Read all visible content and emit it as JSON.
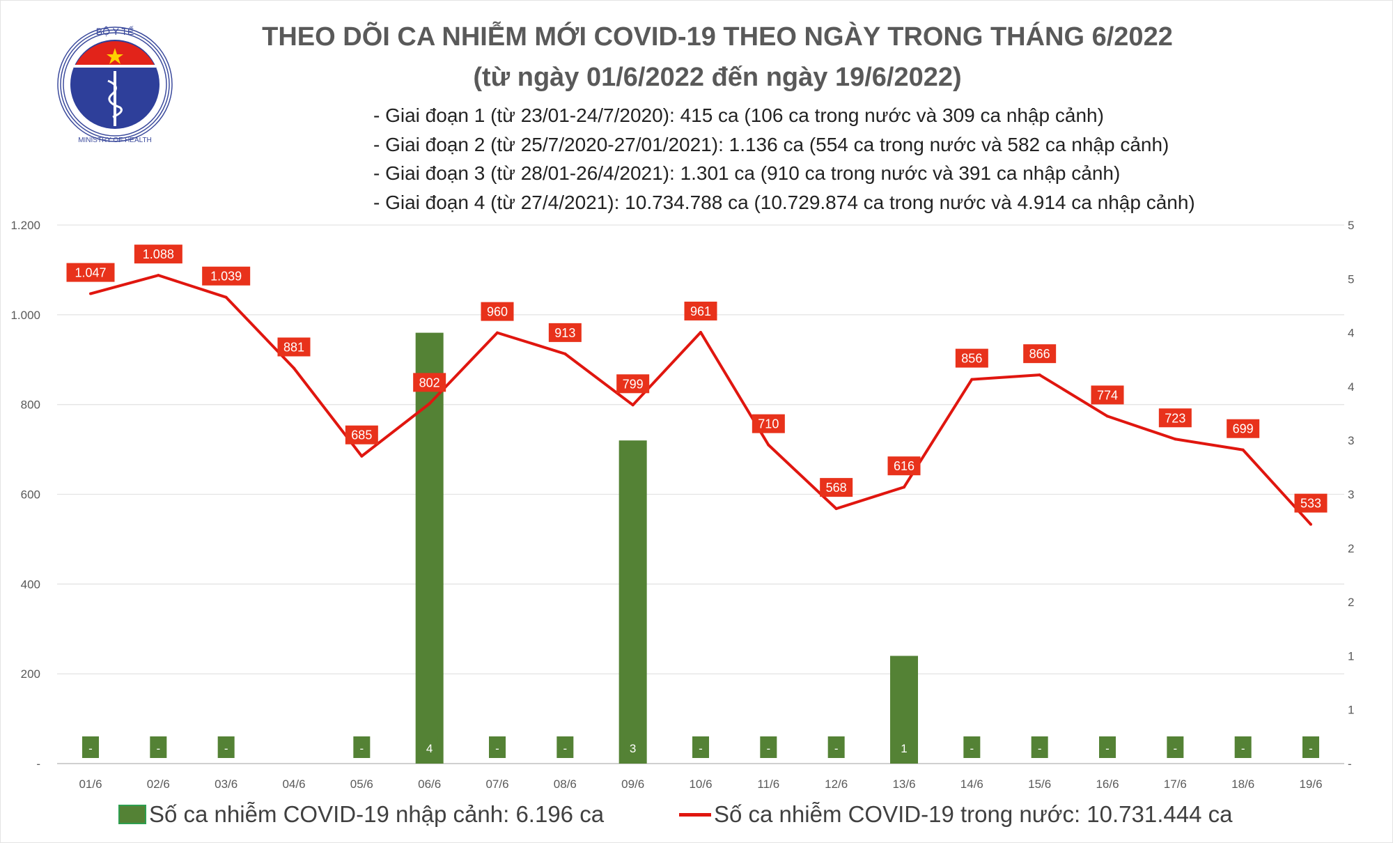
{
  "logo": {
    "top_text": "BỘ Y TẾ",
    "bottom_text": "MINISTRY OF HEALTH"
  },
  "chart_data": {
    "type": "bar+line",
    "title": "THEO DÕI CA NHIỄM MỚI COVID-19 THEO NGÀY TRONG THÁNG 6/2022",
    "subtitle": "(từ ngày 01/6/2022 đến ngày 19/6/2022)",
    "notes": [
      "- Giai đoạn 1 (từ 23/01-24/7/2020): 415 ca (106 ca trong nước và 309 ca nhập cảnh)",
      "- Giai đoạn 2 (từ 25/7/2020-27/01/2021): 1.136 ca (554 ca trong nước và 582 ca nhập cảnh)",
      "- Giai đoạn 3 (từ 28/01-26/4/2021): 1.301 ca (910 ca trong nước và 391 ca nhập cảnh)",
      "- Giai đoạn 4 (từ 27/4/2021): 10.734.788 ca (10.729.874 ca trong nước và 4.914 ca nhập cảnh)"
    ],
    "categories": [
      "01/6",
      "02/6",
      "03/6",
      "04/6",
      "05/6",
      "06/6",
      "07/6",
      "08/6",
      "09/6",
      "10/6",
      "11/6",
      "12/6",
      "13/6",
      "14/6",
      "15/6",
      "16/6",
      "17/6",
      "18/6",
      "19/6"
    ],
    "series": [
      {
        "name": "Số ca nhiễm COVID-19 nhập cảnh: 6.196 ca",
        "type": "bar",
        "axis": "right",
        "color": "#548235",
        "values": [
          0,
          0,
          0,
          null,
          0,
          4,
          0,
          0,
          3,
          0,
          0,
          0,
          1,
          0,
          0,
          0,
          0,
          0,
          0
        ],
        "labels": [
          "-",
          "-",
          "-",
          "",
          "-",
          "4",
          "-",
          "-",
          "3",
          "-",
          "-",
          "-",
          "1",
          "-",
          "-",
          "-",
          "-",
          "-",
          "-"
        ]
      },
      {
        "name": "Số ca nhiễm COVID-19 trong nước: 10.731.444 ca",
        "type": "line",
        "axis": "left",
        "color": "#e0160f",
        "values": [
          1047,
          1088,
          1039,
          881,
          685,
          802,
          960,
          913,
          799,
          961,
          710,
          568,
          616,
          856,
          866,
          774,
          723,
          699,
          533
        ],
        "labels": [
          "1.047",
          "1.088",
          "1.039",
          "881",
          "685",
          "802",
          "960",
          "913",
          "799",
          "961",
          "710",
          "568",
          "616",
          "856",
          "866",
          "774",
          "723",
          "699",
          "533"
        ]
      }
    ],
    "left_axis": {
      "range": [
        0,
        1200
      ],
      "ticks": [
        "-",
        "200",
        "400",
        "600",
        "800",
        "1.000",
        "1.200"
      ]
    },
    "right_axis": {
      "range": [
        0,
        5
      ],
      "ticks": [
        "-",
        "1",
        "1",
        "2",
        "2",
        "3",
        "3",
        "4",
        "4",
        "5",
        "5"
      ]
    },
    "grid": true,
    "legend_placement": "bottom"
  }
}
